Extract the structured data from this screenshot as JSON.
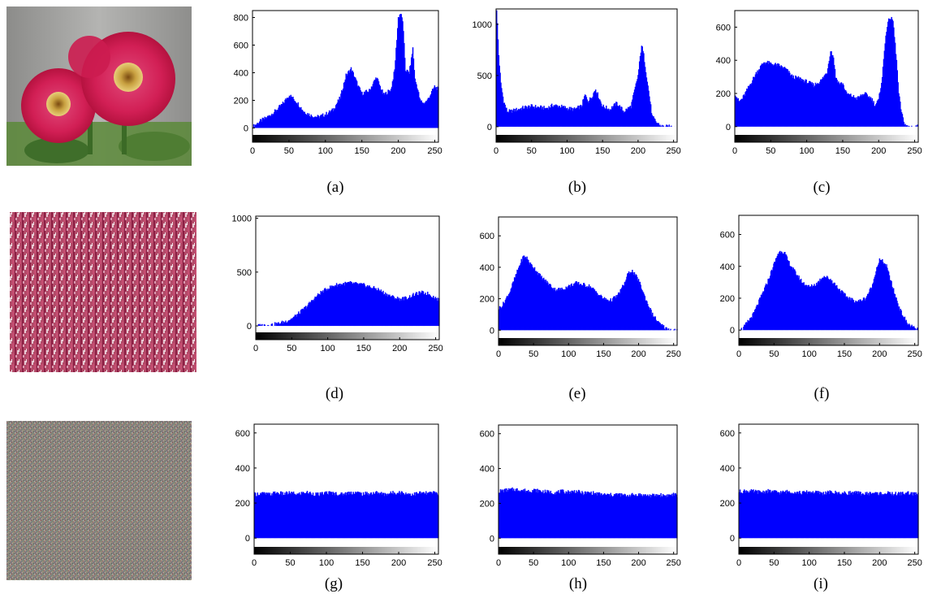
{
  "figure": {
    "rows": [
      {
        "image": {
          "name": "flower-image",
          "kind": "flower"
        },
        "histograms": [
          {
            "label": "(a)",
            "chart_ref": 0
          },
          {
            "label": "(b)",
            "chart_ref": 1
          },
          {
            "label": "(c)",
            "chart_ref": 2
          }
        ]
      },
      {
        "image": {
          "name": "encrypted-stripes-image",
          "kind": "stripes"
        },
        "histograms": [
          {
            "label": "(d)",
            "chart_ref": 3
          },
          {
            "label": "(e)",
            "chart_ref": 4
          },
          {
            "label": "(f)",
            "chart_ref": 5
          }
        ]
      },
      {
        "image": {
          "name": "noise-cipher-image",
          "kind": "noise"
        },
        "histograms": [
          {
            "label": "(g)",
            "chart_ref": 6
          },
          {
            "label": "(h)",
            "chart_ref": 7
          },
          {
            "label": "(i)",
            "chart_ref": 8
          }
        ]
      }
    ],
    "colors": {
      "bars": "#0000ff",
      "axis": "#000000",
      "background": "#ffffff"
    }
  },
  "chart_data": [
    {
      "type": "area",
      "label": "(a)",
      "xlim": [
        0,
        255
      ],
      "ylim": [
        -50,
        850
      ],
      "xticks": [
        0,
        50,
        100,
        150,
        200,
        250
      ],
      "yticks": [
        0,
        200,
        400,
        600,
        800
      ],
      "x": [
        0,
        10,
        20,
        30,
        40,
        50,
        60,
        70,
        80,
        90,
        100,
        110,
        120,
        128,
        135,
        140,
        145,
        150,
        160,
        165,
        170,
        175,
        180,
        190,
        195,
        200,
        203,
        206,
        210,
        215,
        218,
        220,
        223,
        226,
        230,
        235,
        240,
        245,
        250,
        255
      ],
      "y": [
        10,
        50,
        80,
        120,
        170,
        240,
        190,
        120,
        90,
        80,
        100,
        130,
        220,
        380,
        430,
        370,
        300,
        250,
        270,
        320,
        370,
        300,
        240,
        280,
        420,
        800,
        830,
        780,
        420,
        400,
        500,
        580,
        350,
        300,
        200,
        180,
        200,
        250,
        300,
        280
      ]
    },
    {
      "type": "area",
      "label": "(b)",
      "xlim": [
        0,
        255
      ],
      "ylim": [
        -80,
        1150
      ],
      "xticks": [
        0,
        50,
        100,
        150,
        200,
        250
      ],
      "yticks": [
        0,
        500,
        1000
      ],
      "x": [
        0,
        3,
        6,
        10,
        15,
        20,
        30,
        40,
        50,
        60,
        70,
        80,
        90,
        100,
        110,
        120,
        125,
        130,
        135,
        140,
        145,
        150,
        160,
        170,
        180,
        190,
        200,
        205,
        208,
        212,
        216,
        220,
        225,
        230,
        235,
        240,
        255
      ],
      "y": [
        1150,
        700,
        420,
        250,
        150,
        150,
        170,
        190,
        200,
        190,
        180,
        210,
        200,
        180,
        170,
        200,
        310,
        250,
        300,
        370,
        280,
        200,
        170,
        230,
        150,
        200,
        500,
        800,
        700,
        500,
        300,
        100,
        50,
        20,
        0,
        0,
        0
      ]
    },
    {
      "type": "area",
      "label": "(c)",
      "xlim": [
        0,
        255
      ],
      "ylim": [
        -50,
        700
      ],
      "xticks": [
        0,
        50,
        100,
        150,
        200,
        250
      ],
      "yticks": [
        0,
        200,
        400,
        600
      ],
      "x": [
        0,
        5,
        10,
        20,
        30,
        40,
        50,
        60,
        70,
        80,
        90,
        100,
        110,
        120,
        128,
        133,
        137,
        140,
        145,
        150,
        155,
        160,
        170,
        180,
        190,
        195,
        200,
        205,
        210,
        215,
        220,
        225,
        228,
        232,
        236,
        240,
        255
      ],
      "y": [
        200,
        150,
        170,
        250,
        330,
        390,
        380,
        370,
        350,
        300,
        290,
        270,
        250,
        280,
        330,
        460,
        420,
        300,
        260,
        260,
        200,
        190,
        170,
        200,
        170,
        130,
        160,
        300,
        560,
        660,
        640,
        400,
        200,
        80,
        20,
        0,
        0
      ]
    },
    {
      "type": "area",
      "label": "(d)",
      "xlim": [
        0,
        255
      ],
      "ylim": [
        -60,
        1020
      ],
      "xticks": [
        0,
        50,
        100,
        150,
        200,
        250
      ],
      "yticks": [
        0,
        500,
        1000
      ],
      "x": [
        0,
        20,
        30,
        40,
        50,
        60,
        70,
        80,
        90,
        100,
        110,
        120,
        130,
        140,
        150,
        160,
        170,
        180,
        190,
        200,
        210,
        220,
        230,
        240,
        250,
        255
      ],
      "y": [
        0,
        10,
        20,
        40,
        70,
        120,
        180,
        250,
        310,
        350,
        380,
        390,
        400,
        390,
        380,
        360,
        340,
        300,
        270,
        250,
        260,
        290,
        310,
        300,
        260,
        240
      ]
    },
    {
      "type": "area",
      "label": "(e)",
      "xlim": [
        0,
        255
      ],
      "ylim": [
        -50,
        720
      ],
      "xticks": [
        0,
        50,
        100,
        150,
        200,
        250
      ],
      "yticks": [
        0,
        200,
        400,
        600
      ],
      "x": [
        0,
        5,
        10,
        15,
        20,
        25,
        30,
        35,
        40,
        45,
        50,
        60,
        70,
        80,
        90,
        100,
        110,
        120,
        130,
        140,
        150,
        160,
        170,
        180,
        185,
        190,
        195,
        200,
        210,
        220,
        230,
        240,
        250,
        255
      ],
      "y": [
        140,
        160,
        200,
        240,
        300,
        360,
        420,
        470,
        460,
        420,
        400,
        340,
        300,
        260,
        260,
        280,
        300,
        290,
        280,
        240,
        200,
        190,
        220,
        300,
        360,
        380,
        350,
        320,
        200,
        100,
        40,
        10,
        0,
        0
      ]
    },
    {
      "type": "area",
      "label": "(f)",
      "xlim": [
        0,
        255
      ],
      "ylim": [
        -50,
        720
      ],
      "xticks": [
        0,
        50,
        100,
        150,
        200,
        250
      ],
      "yticks": [
        0,
        200,
        400,
        600
      ],
      "x": [
        0,
        5,
        10,
        20,
        30,
        40,
        50,
        55,
        60,
        65,
        70,
        80,
        90,
        100,
        110,
        120,
        130,
        140,
        150,
        160,
        170,
        180,
        190,
        195,
        200,
        205,
        210,
        220,
        230,
        240,
        250,
        255
      ],
      "y": [
        0,
        10,
        40,
        100,
        200,
        300,
        420,
        480,
        500,
        480,
        430,
        360,
        300,
        270,
        290,
        340,
        320,
        270,
        220,
        190,
        180,
        200,
        280,
        380,
        440,
        430,
        400,
        250,
        120,
        40,
        10,
        0
      ]
    },
    {
      "type": "area",
      "label": "(g)",
      "xlim": [
        0,
        255
      ],
      "ylim": [
        -50,
        650
      ],
      "xticks": [
        0,
        50,
        100,
        150,
        200,
        250
      ],
      "yticks": [
        0,
        200,
        400,
        600
      ],
      "x": [
        0,
        10,
        20,
        30,
        40,
        50,
        60,
        70,
        80,
        90,
        100,
        110,
        120,
        130,
        140,
        150,
        160,
        170,
        180,
        190,
        200,
        210,
        220,
        230,
        240,
        250,
        255
      ],
      "y": [
        250,
        255,
        248,
        260,
        252,
        258,
        250,
        262,
        255,
        248,
        260,
        256,
        250,
        258,
        262,
        252,
        255,
        260,
        250,
        257,
        262,
        255,
        250,
        258,
        255,
        260,
        252
      ]
    },
    {
      "type": "area",
      "label": "(h)",
      "xlim": [
        0,
        255
      ],
      "ylim": [
        -50,
        650
      ],
      "xticks": [
        0,
        50,
        100,
        150,
        200,
        250
      ],
      "yticks": [
        0,
        200,
        400,
        600
      ],
      "x": [
        0,
        10,
        20,
        30,
        40,
        50,
        60,
        70,
        80,
        90,
        100,
        110,
        120,
        130,
        140,
        150,
        160,
        170,
        180,
        190,
        200,
        210,
        220,
        230,
        240,
        250,
        255
      ],
      "y": [
        270,
        275,
        280,
        278,
        272,
        276,
        270,
        265,
        262,
        268,
        265,
        270,
        258,
        262,
        255,
        250,
        248,
        252,
        245,
        248,
        250,
        246,
        244,
        248,
        245,
        250,
        246
      ]
    },
    {
      "type": "area",
      "label": "(i)",
      "xlim": [
        0,
        255
      ],
      "ylim": [
        -50,
        650
      ],
      "xticks": [
        0,
        50,
        100,
        150,
        200,
        250
      ],
      "yticks": [
        0,
        200,
        400,
        600
      ],
      "x": [
        0,
        10,
        20,
        30,
        40,
        50,
        60,
        70,
        80,
        90,
        100,
        110,
        120,
        130,
        140,
        150,
        160,
        170,
        180,
        190,
        200,
        210,
        220,
        230,
        240,
        250,
        255
      ],
      "y": [
        265,
        270,
        266,
        262,
        268,
        264,
        260,
        266,
        262,
        258,
        264,
        260,
        256,
        262,
        258,
        255,
        260,
        256,
        252,
        258,
        254,
        256,
        252,
        254,
        258,
        252,
        250
      ]
    }
  ]
}
